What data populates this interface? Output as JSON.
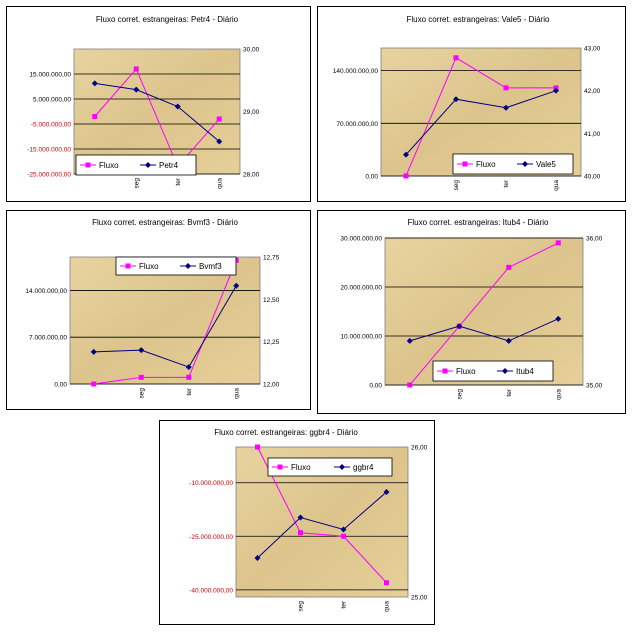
{
  "chart_data": [
    {
      "type": "line",
      "title": "Fluxo corret. estrangeiras: Petr4 - Diário",
      "categories": [
        "",
        "seg",
        "ter",
        "qua"
      ],
      "series": [
        {
          "name": "Fluxo",
          "axis": "left",
          "color": "#ff00ff",
          "marker": "square",
          "values": [
            -2000000,
            17000000,
            -22000000,
            -3000000
          ]
        },
        {
          "name": "Petr4",
          "axis": "right",
          "color": "#000080",
          "marker": "diamond",
          "values": [
            29.45,
            29.35,
            29.08,
            28.52
          ]
        }
      ],
      "left_axis": {
        "min": -25000000,
        "max": 25000000,
        "ticks": [
          -25000000,
          -15000000,
          -5000000,
          5000000,
          15000000
        ],
        "tick_labels": [
          "-25.000.000,00",
          "-15.000.000,00",
          "-5.000.000,00",
          "5.000.000,00",
          "15.000.000,00"
        ]
      },
      "right_axis": {
        "min": 28,
        "max": 30,
        "ticks": [
          28,
          29,
          30
        ],
        "tick_labels": [
          "28,00",
          "29,00",
          "30,00"
        ]
      },
      "legend": {
        "placement": "bottom-left",
        "items": [
          "Fluxo",
          "Petr4"
        ]
      }
    },
    {
      "type": "line",
      "title": "Fluxo corret. estrangeiras: Vale5 - Diário",
      "categories": [
        "",
        "seg",
        "ter",
        "qua"
      ],
      "series": [
        {
          "name": "Fluxo",
          "axis": "left",
          "color": "#ff00ff",
          "marker": "square",
          "values": [
            0,
            157000000,
            117000000,
            117000000
          ]
        },
        {
          "name": "Vale5",
          "axis": "right",
          "color": "#000080",
          "marker": "diamond",
          "values": [
            40.5,
            41.8,
            41.6,
            42.0
          ]
        }
      ],
      "left_axis": {
        "min": 0,
        "max": 170000000,
        "ticks": [
          0,
          70000000,
          140000000
        ],
        "tick_labels": [
          "0,00",
          "70.000.000,00",
          "140.000.000,00"
        ]
      },
      "right_axis": {
        "min": 40,
        "max": 43,
        "ticks": [
          40,
          41,
          42,
          43
        ],
        "tick_labels": [
          "40,00",
          "41,00",
          "42,00",
          "43,00"
        ]
      },
      "legend": {
        "placement": "bottom-right",
        "items": [
          "Fluxo",
          "Vale5"
        ]
      }
    },
    {
      "type": "line",
      "title": "Fluxo corret. estrangeiras: Bvmf3 - Diário",
      "categories": [
        "",
        "seg",
        "ter",
        "qua"
      ],
      "series": [
        {
          "name": "Fluxo",
          "axis": "left",
          "color": "#ff00ff",
          "marker": "square",
          "values": [
            0,
            1000000,
            1000000,
            18500000
          ]
        },
        {
          "name": "Bvmf3",
          "axis": "right",
          "color": "#000080",
          "marker": "diamond",
          "values": [
            12.19,
            12.2,
            12.1,
            12.58
          ]
        }
      ],
      "left_axis": {
        "min": 0,
        "max": 19000000,
        "ticks": [
          0,
          7000000,
          14000000
        ],
        "tick_labels": [
          "0,00",
          "7.000.000,00",
          "14.000.000,00"
        ]
      },
      "right_axis": {
        "min": 12,
        "max": 12.75,
        "ticks": [
          12,
          12.25,
          12.5,
          12.75
        ],
        "tick_labels": [
          "12,00",
          "12,25",
          "12,50",
          "12,75"
        ]
      },
      "legend": {
        "placement": "top-left",
        "items": [
          "Fluxo",
          "Bvmf3"
        ]
      }
    },
    {
      "type": "line",
      "title": "Fluxo corret. estrangeiras: Itub4 - Diário",
      "categories": [
        "",
        "seg",
        "ter",
        "qua"
      ],
      "series": [
        {
          "name": "Fluxo",
          "axis": "left",
          "color": "#ff00ff",
          "marker": "square",
          "values": [
            0,
            12000000,
            24000000,
            29000000
          ]
        },
        {
          "name": "Itub4",
          "axis": "right",
          "color": "#000080",
          "marker": "diamond",
          "values": [
            35.3,
            35.4,
            35.3,
            35.45
          ]
        }
      ],
      "left_axis": {
        "min": 0,
        "max": 30000000,
        "ticks": [
          0,
          10000000,
          20000000,
          30000000
        ],
        "tick_labels": [
          "0,00",
          "10.000.000,00",
          "20.000.000,00",
          "30.000.000,00"
        ]
      },
      "right_axis": {
        "min": 35,
        "max": 36,
        "ticks": [
          35,
          36
        ],
        "tick_labels": [
          "35,00",
          "36,00"
        ]
      },
      "legend": {
        "placement": "bottom-left",
        "items": [
          "Fluxo",
          "Itub4"
        ]
      }
    },
    {
      "type": "line",
      "title": "Fluxo corret. estrangeiras: ggbr4 - Diário",
      "categories": [
        "",
        "seg",
        "ter",
        "qua"
      ],
      "series": [
        {
          "name": "Fluxo",
          "axis": "left",
          "color": "#ff00ff",
          "marker": "square",
          "values": [
            0,
            -24000000,
            -25000000,
            -38000000
          ]
        },
        {
          "name": "ggbr4",
          "axis": "right",
          "color": "#000080",
          "marker": "diamond",
          "values": [
            25.26,
            25.53,
            25.45,
            25.7
          ]
        }
      ],
      "left_axis": {
        "min": -42000000,
        "max": 0,
        "ticks": [
          -40000000,
          -25000000,
          -10000000
        ],
        "tick_labels": [
          "-40.000.000,00",
          "-25.000.000,00",
          "-10.000.000,00"
        ]
      },
      "right_axis": {
        "min": 25,
        "max": 26,
        "ticks": [
          25,
          26
        ],
        "tick_labels": [
          "25,00",
          "26,00"
        ]
      },
      "legend": {
        "placement": "top-center",
        "items": [
          "Fluxo",
          "ggbr4"
        ]
      }
    }
  ]
}
